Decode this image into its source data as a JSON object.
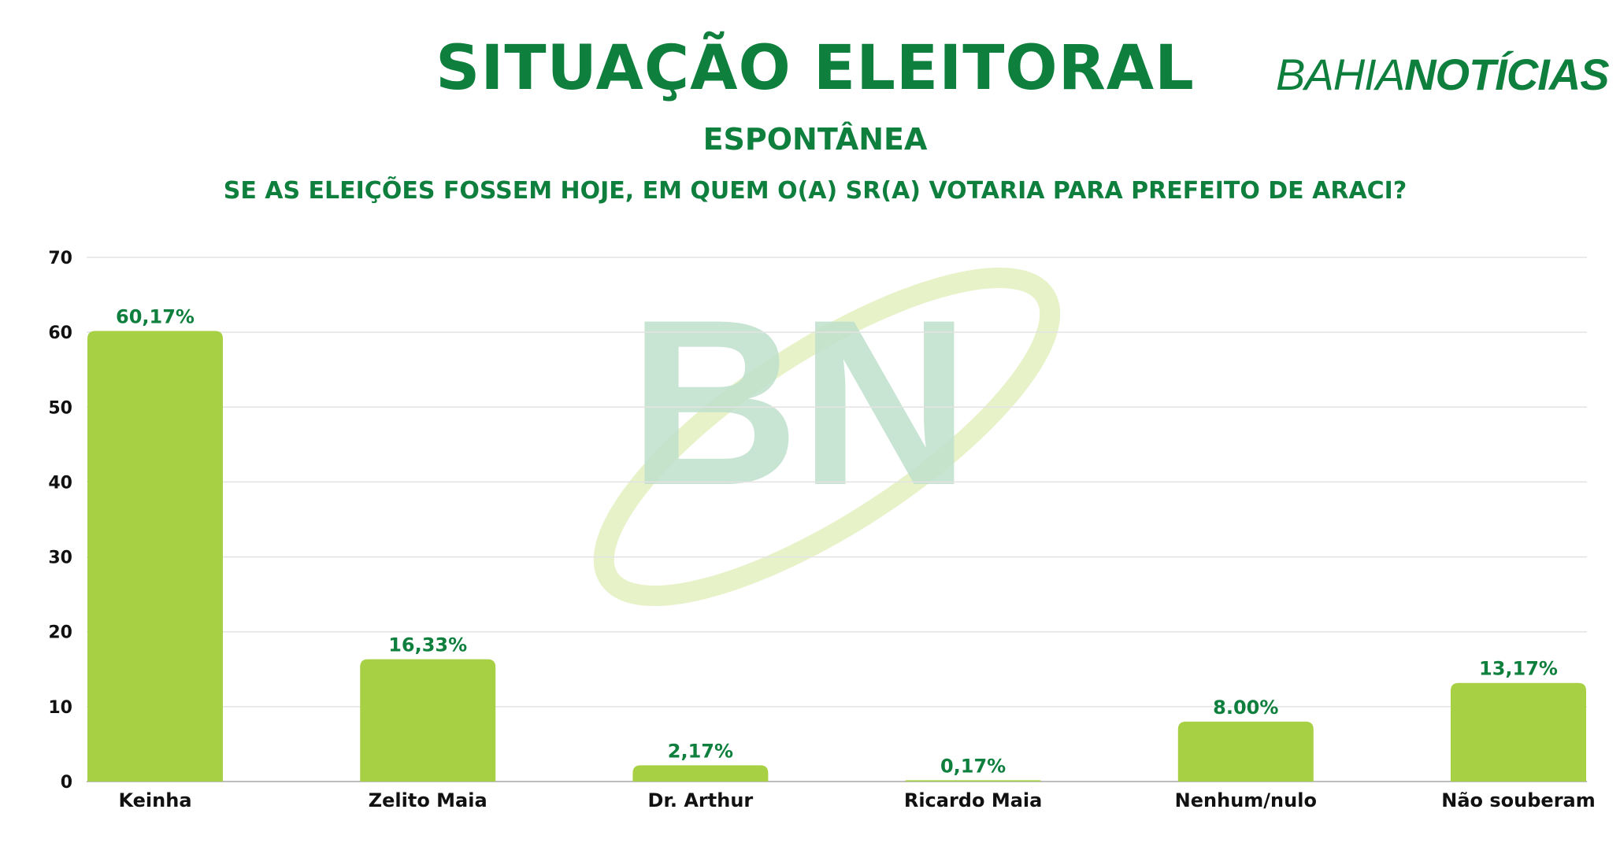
{
  "header": {
    "title": "SITUAÇÃO ELEITORAL",
    "subtitle": "ESPONTÂNEA",
    "question": "SE AS ELEIÇÕES FOSSEM HOJE, EM QUEM O(A) SR(A) VOTARIA PARA PREFEITO DE ARACI?"
  },
  "brand": {
    "part1": "BAHIA",
    "part2": "NOTÍCIAS",
    "watermark": "BN"
  },
  "colors": {
    "bar": "#a8d045",
    "title": "#0f7f3e",
    "grid": "#e3e3e3",
    "watermark_letters": "#bfe0cc",
    "watermark_swoosh": "#e8f2c9"
  },
  "chart_data": {
    "type": "bar",
    "categories": [
      "Keinha",
      "Zelito Maia",
      "Dr. Arthur",
      "Ricardo Maia",
      "Nenhum/nulo",
      "Não souberam"
    ],
    "values": [
      60.17,
      16.33,
      2.17,
      0.17,
      8.0,
      13.17
    ],
    "data_labels": [
      "60,17%",
      "16,33%",
      "2,17%",
      "0,17%",
      "8.00%",
      "13,17%"
    ],
    "yticks": [
      0,
      10,
      20,
      30,
      40,
      50,
      60,
      70
    ],
    "ylim": [
      0,
      70
    ],
    "grid": true,
    "legend": "none"
  }
}
